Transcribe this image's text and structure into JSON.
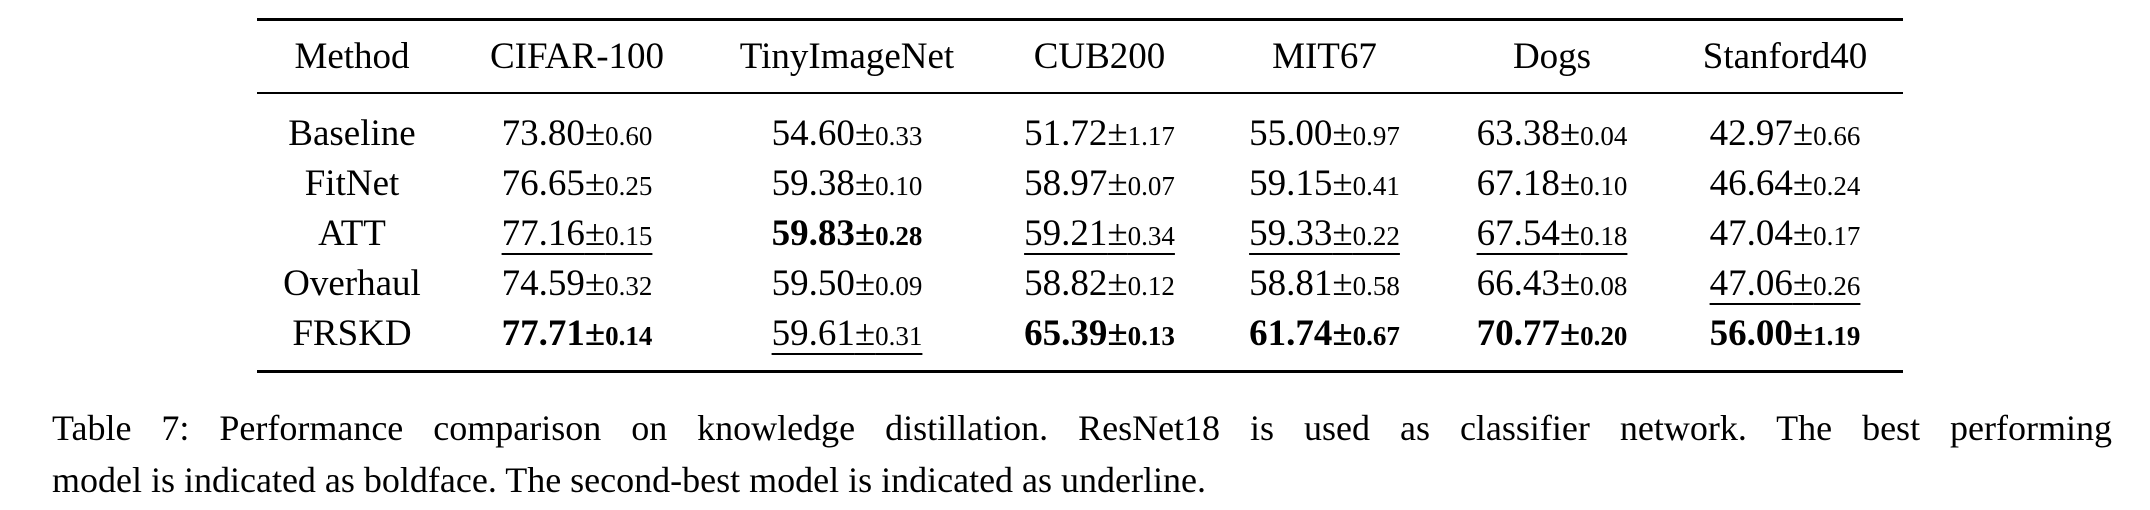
{
  "table": {
    "headers": [
      "Method",
      "CIFAR-100",
      "TinyImageNet",
      "CUB200",
      "MIT67",
      "Dogs",
      "Stanford40"
    ],
    "rows": [
      {
        "method": "Baseline",
        "cells": [
          {
            "mean": "73.80",
            "pm": "±",
            "sd": "0.60",
            "bold": false,
            "underline": false
          },
          {
            "mean": "54.60",
            "pm": "±",
            "sd": "0.33",
            "bold": false,
            "underline": false
          },
          {
            "mean": "51.72",
            "pm": "±",
            "sd": "1.17",
            "bold": false,
            "underline": false
          },
          {
            "mean": "55.00",
            "pm": "±",
            "sd": "0.97",
            "bold": false,
            "underline": false
          },
          {
            "mean": "63.38",
            "pm": "±",
            "sd": "0.04",
            "bold": false,
            "underline": false
          },
          {
            "mean": "42.97",
            "pm": "±",
            "sd": "0.66",
            "bold": false,
            "underline": false
          }
        ]
      },
      {
        "method": "FitNet",
        "cells": [
          {
            "mean": "76.65",
            "pm": "±",
            "sd": "0.25",
            "bold": false,
            "underline": false
          },
          {
            "mean": "59.38",
            "pm": "±",
            "sd": "0.10",
            "bold": false,
            "underline": false
          },
          {
            "mean": "58.97",
            "pm": "±",
            "sd": "0.07",
            "bold": false,
            "underline": false
          },
          {
            "mean": "59.15",
            "pm": "±",
            "sd": "0.41",
            "bold": false,
            "underline": false
          },
          {
            "mean": "67.18",
            "pm": "±",
            "sd": "0.10",
            "bold": false,
            "underline": false
          },
          {
            "mean": "46.64",
            "pm": "±",
            "sd": "0.24",
            "bold": false,
            "underline": false
          }
        ]
      },
      {
        "method": "ATT",
        "cells": [
          {
            "mean": "77.16",
            "pm": "±",
            "sd": "0.15",
            "bold": false,
            "underline": true
          },
          {
            "mean": "59.83",
            "pm": "±",
            "sd": "0.28",
            "bold": true,
            "underline": false
          },
          {
            "mean": "59.21",
            "pm": "±",
            "sd": "0.34",
            "bold": false,
            "underline": true
          },
          {
            "mean": "59.33",
            "pm": "±",
            "sd": "0.22",
            "bold": false,
            "underline": true
          },
          {
            "mean": "67.54",
            "pm": "±",
            "sd": "0.18",
            "bold": false,
            "underline": true
          },
          {
            "mean": "47.04",
            "pm": "±",
            "sd": "0.17",
            "bold": false,
            "underline": false
          }
        ]
      },
      {
        "method": "Overhaul",
        "cells": [
          {
            "mean": "74.59",
            "pm": "±",
            "sd": "0.32",
            "bold": false,
            "underline": false
          },
          {
            "mean": "59.50",
            "pm": "±",
            "sd": "0.09",
            "bold": false,
            "underline": false
          },
          {
            "mean": "58.82",
            "pm": "±",
            "sd": "0.12",
            "bold": false,
            "underline": false
          },
          {
            "mean": "58.81",
            "pm": "±",
            "sd": "0.58",
            "bold": false,
            "underline": false
          },
          {
            "mean": "66.43",
            "pm": "±",
            "sd": "0.08",
            "bold": false,
            "underline": false
          },
          {
            "mean": "47.06",
            "pm": "±",
            "sd": "0.26",
            "bold": false,
            "underline": true
          }
        ]
      },
      {
        "method": "FRSKD",
        "cells": [
          {
            "mean": "77.71",
            "pm": "±",
            "sd": "0.14",
            "bold": true,
            "underline": false
          },
          {
            "mean": "59.61",
            "pm": "±",
            "sd": "0.31",
            "bold": false,
            "underline": true
          },
          {
            "mean": "65.39",
            "pm": "±",
            "sd": "0.13",
            "bold": true,
            "underline": false
          },
          {
            "mean": "61.74",
            "pm": "±",
            "sd": "0.67",
            "bold": true,
            "underline": false
          },
          {
            "mean": "70.77",
            "pm": "±",
            "sd": "0.20",
            "bold": true,
            "underline": false
          },
          {
            "mean": "56.00",
            "pm": "±",
            "sd": "1.19",
            "bold": true,
            "underline": false
          }
        ]
      }
    ]
  },
  "caption": {
    "line1": "Table 7: Performance comparison on knowledge distillation. ResNet18 is used as classifier network. The best performing",
    "line2": "model is indicated as boldface. The second-best model is indicated as underline."
  }
}
